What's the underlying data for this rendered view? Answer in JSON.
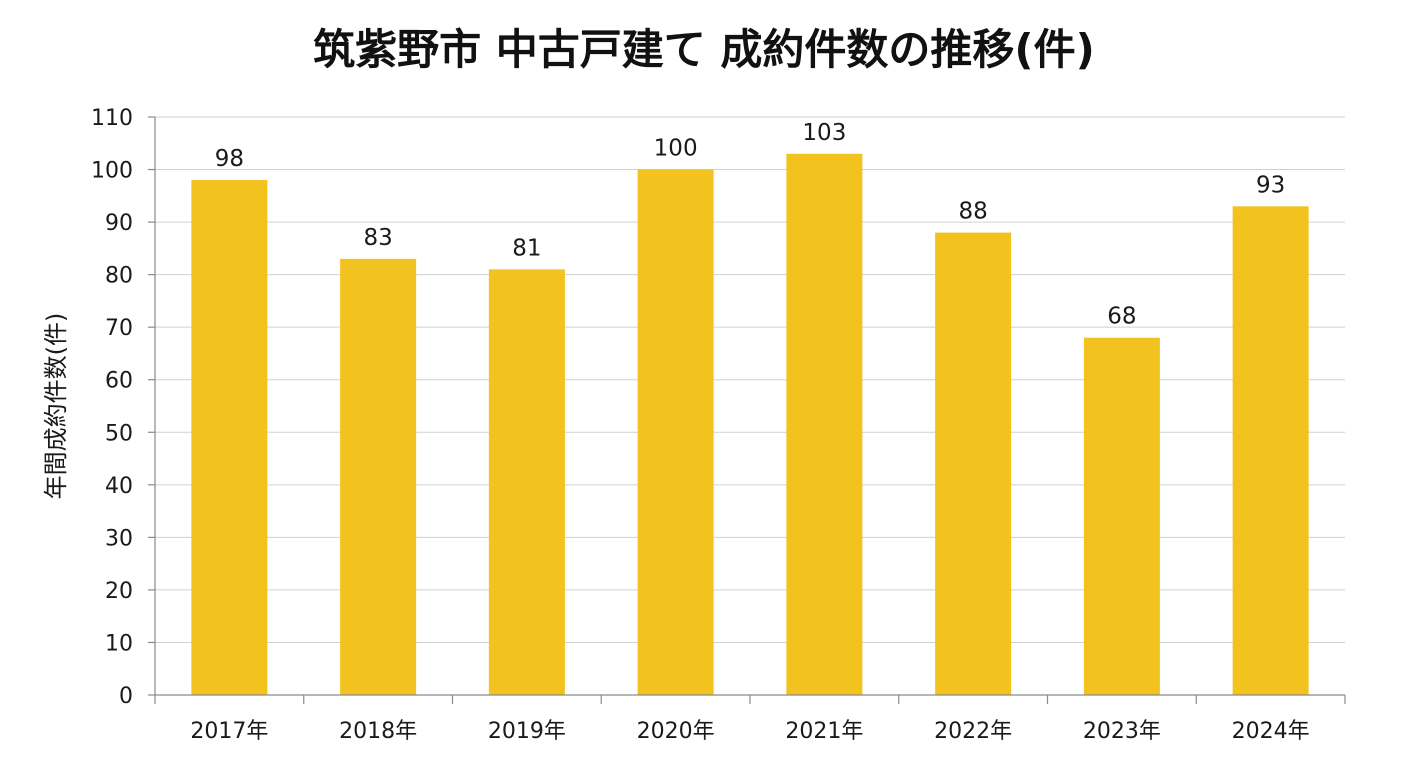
{
  "chart_data": {
    "type": "bar",
    "title": "筑紫野市 中古戸建て 成約件数の推移(件)",
    "xlabel": "",
    "ylabel": "年間成約件数(件)",
    "categories": [
      "2017年",
      "2018年",
      "2019年",
      "2020年",
      "2021年",
      "2022年",
      "2023年",
      "2024年"
    ],
    "values": [
      98,
      83,
      81,
      100,
      103,
      88,
      68,
      93
    ],
    "ylim": [
      0,
      110
    ],
    "yticks": [
      0,
      10,
      20,
      30,
      40,
      50,
      60,
      70,
      80,
      90,
      100,
      110
    ],
    "grid": true,
    "legend": "none",
    "data_labels": true,
    "bar_color": "#F2C21E"
  }
}
